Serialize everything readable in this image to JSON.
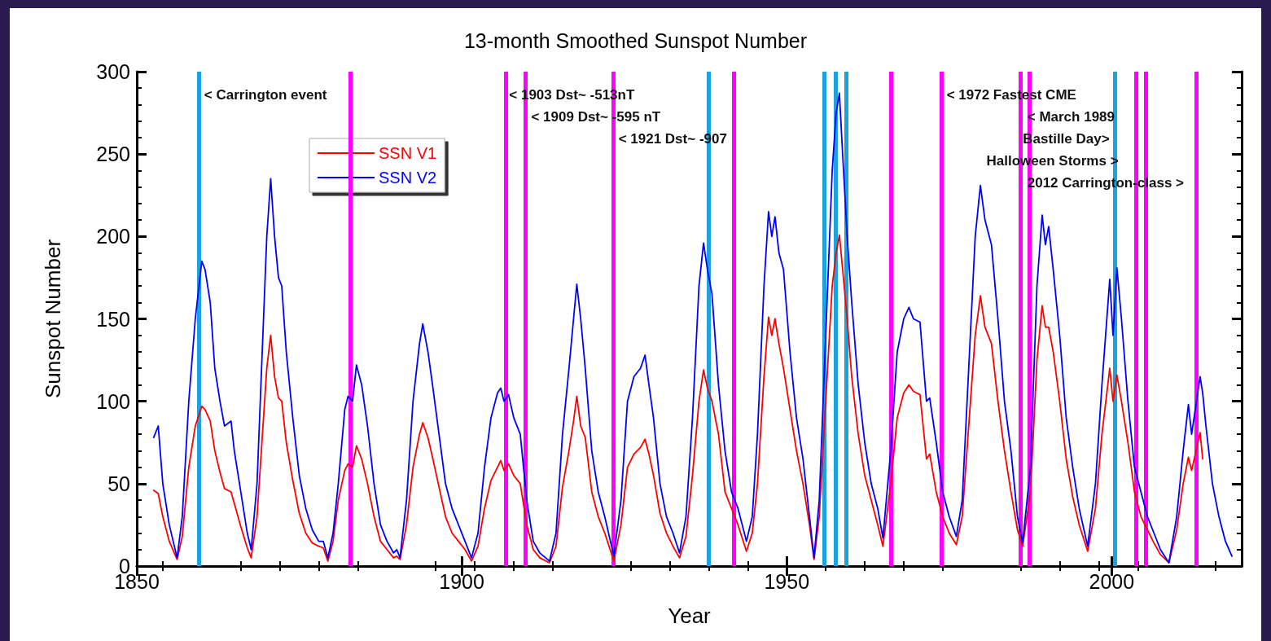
{
  "chart_data": {
    "type": "line",
    "title": "13-month Smoothed Sunspot Number",
    "xlabel": "Year",
    "ylabel": "Sunspot Number",
    "x": [
      1852.6,
      1853.3,
      1854,
      1855,
      1856.2,
      1857,
      1858,
      1859,
      1860,
      1860.5,
      1861.3,
      1862,
      1862.8,
      1863.5,
      1864.5,
      1865,
      1866,
      1867,
      1867.6,
      1868.5,
      1869.5,
      1870,
      1870.6,
      1871.2,
      1871.8,
      1872.3,
      1873,
      1874,
      1875,
      1876,
      1877,
      1878,
      1878.7,
      1879.4,
      1880.2,
      1881,
      1882,
      1882.5,
      1883.2,
      1883.8,
      1884.6,
      1885.5,
      1886.5,
      1887.5,
      1888.5,
      1889.5,
      1890,
      1890.5,
      1891.5,
      1892.5,
      1893.5,
      1894,
      1894.8,
      1895.5,
      1896.5,
      1897.5,
      1898.5,
      1899.5,
      1900.5,
      1901.5,
      1902.5,
      1903.5,
      1904.5,
      1905.5,
      1906,
      1906.5,
      1907.2,
      1908,
      1909,
      1910,
      1911,
      1912,
      1913.5,
      1914.5,
      1915.5,
      1916.5,
      1917.2,
      1917.7,
      1918.3,
      1919,
      1920,
      1921,
      1922,
      1923.4,
      1924.5,
      1925.5,
      1926.5,
      1927.5,
      1928.2,
      1928.8,
      1929.5,
      1930.5,
      1931.5,
      1932.5,
      1933.5,
      1934.5,
      1935.5,
      1936.5,
      1937.2,
      1937.8,
      1938.5,
      1939.5,
      1940.5,
      1941.5,
      1942.5,
      1943.8,
      1944.7,
      1945.5,
      1946.5,
      1947.2,
      1947.7,
      1948.2,
      1948.8,
      1949.5,
      1950.5,
      1951.5,
      1952.5,
      1953.5,
      1954.2,
      1955,
      1956,
      1957,
      1957.6,
      1958.1,
      1958.6,
      1959.3,
      1960,
      1961,
      1962,
      1963,
      1964,
      1964.8,
      1966,
      1967,
      1968,
      1968.8,
      1969.5,
      1970.5,
      1971.5,
      1972,
      1973,
      1974,
      1975,
      1976.1,
      1977,
      1978,
      1979,
      1979.8,
      1980.5,
      1981.5,
      1982.5,
      1983.5,
      1984.5,
      1985.5,
      1986.3,
      1987.5,
      1988.5,
      1989.3,
      1989.8,
      1990.3,
      1991,
      1992,
      1993,
      1994,
      1995,
      1996.3,
      1997.5,
      1998.5,
      1999.7,
      2000.2,
      2000.8,
      2001.5,
      2002.5,
      2003.5,
      2004.5,
      2005.5,
      2006.5,
      2007.5,
      2008.8,
      2010,
      2011,
      2011.8,
      2012.3,
      2013.6,
      2014,
      2014.5,
      2015.5,
      2016.5,
      2017.5,
      2018.5
    ],
    "series": [
      {
        "name": "SSN V1",
        "color": "#ff0000",
        "values": [
          46,
          44,
          30,
          15,
          4,
          18,
          60,
          85,
          97,
          95,
          88,
          70,
          57,
          47,
          45,
          38,
          24,
          11,
          5,
          30,
          90,
          120,
          140,
          115,
          102,
          100,
          75,
          52,
          32,
          20,
          14,
          12,
          11,
          3,
          15,
          40,
          58,
          62,
          60,
          73,
          65,
          50,
          30,
          15,
          10,
          5,
          6,
          4,
          25,
          60,
          80,
          87,
          78,
          66,
          48,
          30,
          20,
          15,
          10,
          3,
          12,
          35,
          52,
          60,
          64,
          58,
          62,
          55,
          50,
          25,
          10,
          5,
          2,
          12,
          48,
          70,
          88,
          103,
          85,
          78,
          45,
          30,
          20,
          3,
          25,
          60,
          68,
          72,
          77,
          68,
          55,
          32,
          20,
          12,
          5,
          18,
          55,
          100,
          119,
          108,
          100,
          80,
          45,
          35,
          25,
          9,
          20,
          50,
          115,
          151,
          140,
          150,
          135,
          120,
          95,
          70,
          50,
          25,
          4,
          30,
          100,
          170,
          190,
          201,
          180,
          150,
          115,
          80,
          55,
          40,
          25,
          12,
          50,
          90,
          105,
          110,
          106,
          104,
          65,
          68,
          45,
          30,
          20,
          13,
          30,
          85,
          140,
          164,
          145,
          135,
          100,
          70,
          45,
          22,
          12,
          45,
          125,
          158,
          145,
          145,
          130,
          100,
          65,
          42,
          25,
          9,
          35,
          80,
          120,
          100,
          116,
          100,
          75,
          45,
          30,
          22,
          14,
          7,
          2,
          22,
          50,
          66,
          58,
          81,
          65,
          null,
          null,
          null,
          null,
          null
        ]
      },
      {
        "name": "SSN V2",
        "color": "#0000ff",
        "values": [
          78,
          85,
          50,
          25,
          5,
          30,
          100,
          150,
          185,
          180,
          160,
          120,
          100,
          85,
          88,
          70,
          45,
          20,
          10,
          50,
          150,
          200,
          235,
          200,
          175,
          170,
          130,
          90,
          55,
          35,
          22,
          15,
          15,
          5,
          20,
          50,
          95,
          103,
          100,
          122,
          110,
          85,
          50,
          25,
          15,
          8,
          10,
          5,
          40,
          100,
          135,
          147,
          130,
          110,
          80,
          50,
          35,
          25,
          15,
          5,
          20,
          60,
          90,
          105,
          108,
          100,
          104,
          90,
          80,
          40,
          15,
          8,
          3,
          20,
          80,
          120,
          150,
          171,
          150,
          120,
          70,
          45,
          30,
          6,
          40,
          100,
          115,
          120,
          128,
          110,
          90,
          50,
          30,
          20,
          8,
          30,
          90,
          170,
          196,
          180,
          165,
          110,
          70,
          45,
          35,
          15,
          30,
          80,
          170,
          215,
          200,
          212,
          190,
          180,
          130,
          90,
          65,
          30,
          5,
          40,
          140,
          240,
          275,
          287,
          250,
          200,
          160,
          110,
          75,
          50,
          35,
          17,
          70,
          130,
          150,
          157,
          150,
          148,
          100,
          102,
          75,
          45,
          30,
          18,
          40,
          120,
          200,
          231,
          210,
          195,
          150,
          100,
          70,
          30,
          14,
          60,
          170,
          213,
          195,
          206,
          180,
          140,
          90,
          60,
          35,
          12,
          50,
          110,
          174,
          140,
          181,
          150,
          100,
          60,
          45,
          30,
          20,
          10,
          2,
          30,
          70,
          98,
          80,
          115,
          105,
          85,
          50,
          30,
          15,
          6
        ]
      }
    ],
    "xlim": [
      1850,
      2020
    ],
    "xticks": [
      1850,
      1900,
      1950,
      2000
    ],
    "ylim": [
      0,
      300
    ],
    "yticks": [
      0,
      50,
      100,
      150,
      200,
      250,
      300
    ],
    "grid": false,
    "legend": "top left",
    "marker": "none",
    "line_style": "solid",
    "ref_lines": [
      {
        "axis": "x",
        "value": 1859.6,
        "color": "#1aa3dc"
      },
      {
        "axis": "x",
        "value": 1882.8,
        "color": "#ff00ff"
      },
      {
        "axis": "x",
        "value": 1906.8,
        "color": "#ff00ff"
      },
      {
        "axis": "x",
        "value": 1909.8,
        "color": "#ff00ff"
      },
      {
        "axis": "x",
        "value": 1923.3,
        "color": "#ff00ff"
      },
      {
        "axis": "x",
        "value": 1938,
        "color": "#1aa3dc"
      },
      {
        "axis": "x",
        "value": 1941.8,
        "color": "#ff00ff"
      },
      {
        "axis": "x",
        "value": 1955.8,
        "color": "#1aa3dc"
      },
      {
        "axis": "x",
        "value": 1957.5,
        "color": "#1aa3dc"
      },
      {
        "axis": "x",
        "value": 1959.1,
        "color": "#1aa3dc"
      },
      {
        "axis": "x",
        "value": 1966,
        "color": "#ff00ff"
      },
      {
        "axis": "x",
        "value": 1973.8,
        "color": "#ff00ff"
      },
      {
        "axis": "x",
        "value": 1986,
        "color": "#ff00ff"
      },
      {
        "axis": "x",
        "value": 1987.3,
        "color": "#ff00ff"
      },
      {
        "axis": "x",
        "value": 2000.5,
        "color": "#1aa3dc"
      },
      {
        "axis": "x",
        "value": 2003.8,
        "color": "#ff00ff"
      },
      {
        "axis": "x",
        "value": 2005.3,
        "color": "#ff00ff"
      },
      {
        "axis": "x",
        "value": 2013,
        "color": "#ff00ff"
      }
    ],
    "annotations": [
      "< Carrington event",
      "< 1903 Dst~ -513nT",
      "< 1909 Dst~ -595 nT",
      "< 1921 Dst~ -907",
      "< 1972 Fastest CME",
      "< March 1989",
      "Bastille Day>",
      "Halloween Storms >",
      "2012 Carrington-class >"
    ]
  }
}
